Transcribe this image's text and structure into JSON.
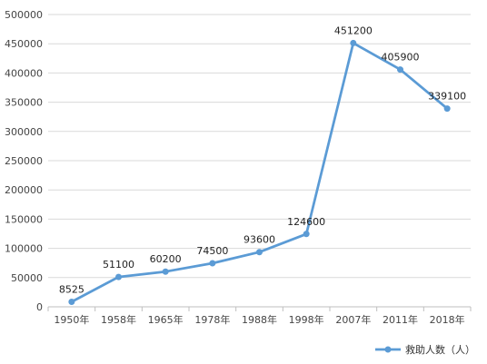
{
  "chart_data": {
    "type": "line",
    "categories": [
      "1950年",
      "1958年",
      "1965年",
      "1978年",
      "1988年",
      "1998年",
      "2007年",
      "2011年",
      "2018年"
    ],
    "series": [
      {
        "name": "救助人数（人）",
        "values": [
          8525,
          51100,
          60200,
          74500,
          93600,
          124600,
          451200,
          405900,
          339100
        ],
        "data_labels": [
          "8525",
          "51100",
          "60200",
          "74500",
          "93600",
          "124600",
          "451200",
          "405900",
          "339100"
        ]
      }
    ],
    "y_ticks": [
      "0",
      "50000",
      "100000",
      "150000",
      "200000",
      "250000",
      "300000",
      "350000",
      "400000",
      "450000",
      "500000"
    ],
    "ylim": [
      0,
      500000
    ],
    "grid": true,
    "legend_position": "bottom-right",
    "colors": {
      "line": "#5b9bd5",
      "grid": "#d9d9d9",
      "axis": "#bfbfbf"
    }
  }
}
